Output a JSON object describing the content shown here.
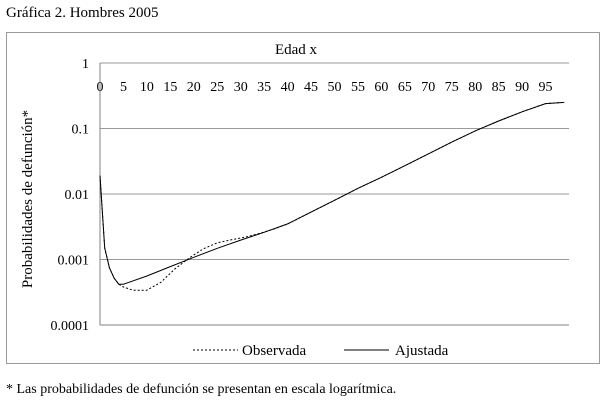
{
  "figure": {
    "title": "Gráfica 2. Hombres 2005",
    "footnote": "* Las probabilidades de defunción se presentan en escala logarítmica."
  },
  "chart_data": {
    "type": "line",
    "title": "",
    "xlabel": "Edad x",
    "ylabel": "Probabilidades de defunción*",
    "x_axis_position": "top",
    "y_scale": "log",
    "ylim": [
      0.0001,
      1
    ],
    "xlim": [
      0,
      100
    ],
    "x_ticks": [
      "0",
      "5",
      "10",
      "15",
      "20",
      "25",
      "30",
      "35",
      "40",
      "45",
      "50",
      "55",
      "60",
      "65",
      "70",
      "75",
      "80",
      "85",
      "90",
      "95"
    ],
    "y_ticks": [
      "1",
      "0.1",
      "0.01",
      "0.001",
      "0.0001"
    ],
    "grid": "horizontal",
    "legend_position": "bottom-center",
    "series": [
      {
        "name": "Observada",
        "style": "dotted",
        "x": [
          0,
          1,
          2,
          3,
          4,
          5,
          7,
          10,
          13,
          16,
          19,
          22,
          25,
          28,
          31,
          34,
          37,
          40,
          45,
          50,
          55,
          60,
          65,
          70,
          75,
          80,
          85,
          90,
          95,
          99
        ],
        "y": [
          0.019,
          0.0015,
          0.00075,
          0.00052,
          0.00042,
          0.00038,
          0.00034,
          0.00034,
          0.00045,
          0.00072,
          0.00105,
          0.00145,
          0.0018,
          0.002,
          0.0022,
          0.0025,
          0.0029,
          0.0035,
          0.0053,
          0.008,
          0.0122,
          0.018,
          0.027,
          0.041,
          0.062,
          0.092,
          0.13,
          0.18,
          0.24,
          0.25
        ]
      },
      {
        "name": "Ajustada",
        "style": "solid",
        "x": [
          0,
          1,
          2,
          3,
          4,
          5,
          10,
          15,
          20,
          25,
          30,
          35,
          40,
          45,
          50,
          55,
          60,
          65,
          70,
          75,
          80,
          85,
          90,
          95,
          99
        ],
        "y": [
          0.019,
          0.0015,
          0.00075,
          0.00052,
          0.00042,
          0.00042,
          0.00056,
          0.00078,
          0.00108,
          0.00148,
          0.00198,
          0.0026,
          0.0035,
          0.0053,
          0.008,
          0.0122,
          0.018,
          0.027,
          0.041,
          0.062,
          0.092,
          0.13,
          0.18,
          0.24,
          0.25
        ]
      }
    ]
  }
}
